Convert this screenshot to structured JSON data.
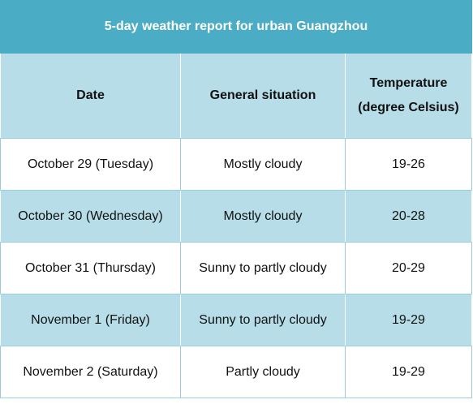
{
  "table": {
    "title": "5-day weather report for urban Guangzhou",
    "header": [
      "Date",
      "General situation",
      "Temperature (degree Celsius)"
    ],
    "rows": [
      [
        "October 29 (Tuesday)",
        "Mostly cloudy",
        "19-26"
      ],
      [
        "October 30 (Wednesday)",
        "Mostly cloudy",
        "20-28"
      ],
      [
        "October 31 (Thursday)",
        "Sunny to partly cloudy",
        "20-29"
      ],
      [
        "November 1 (Friday)",
        "Sunny to partly cloudy",
        "19-29"
      ],
      [
        "November 2 (Saturday)",
        "Partly cloudy",
        "19-29"
      ]
    ]
  }
}
